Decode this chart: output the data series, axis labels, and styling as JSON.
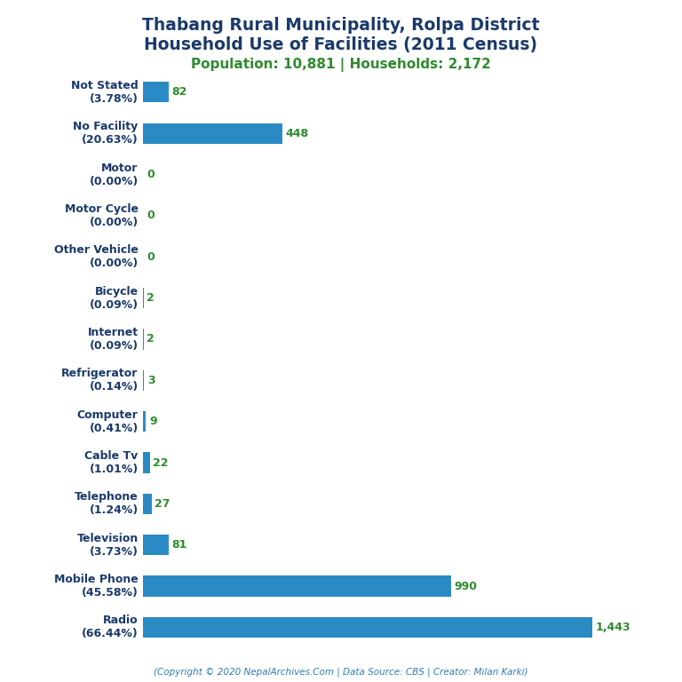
{
  "title_line1": "Thabang Rural Municipality, Rolpa District",
  "title_line2": "Household Use of Facilities (2011 Census)",
  "subtitle": "Population: 10,881 | Households: 2,172",
  "footer": "(Copyright © 2020 NepalArchives.Com | Data Source: CBS | Creator: Milan Karki)",
  "title_color": "#1a3a6b",
  "subtitle_color": "#2e8b2e",
  "footer_color": "#2e7db5",
  "bar_color": "#2a8bc4",
  "value_color": "#2e8b2e",
  "label_color": "#1a3a6b",
  "categories": [
    "Not Stated\n(3.78%)",
    "No Facility\n(20.63%)",
    "Motor\n(0.00%)",
    "Motor Cycle\n(0.00%)",
    "Other Vehicle\n(0.00%)",
    "Bicycle\n(0.09%)",
    "Internet\n(0.09%)",
    "Refrigerator\n(0.14%)",
    "Computer\n(0.41%)",
    "Cable Tv\n(1.01%)",
    "Telephone\n(1.24%)",
    "Television\n(3.73%)",
    "Mobile Phone\n(45.58%)",
    "Radio\n(66.44%)"
  ],
  "values": [
    82,
    448,
    0,
    0,
    0,
    2,
    2,
    3,
    9,
    22,
    27,
    81,
    990,
    1443
  ],
  "value_labels": [
    "82",
    "448",
    "0",
    "0",
    "0",
    "2",
    "2",
    "3",
    "9",
    "22",
    "27",
    "81",
    "990",
    "1,443"
  ],
  "xlim": [
    0,
    1600
  ],
  "figsize": [
    7.68,
    7.68
  ],
  "dpi": 100,
  "title_fontsize": 13.5,
  "subtitle_fontsize": 11,
  "label_fontsize": 9,
  "value_fontsize": 9,
  "footer_fontsize": 7.5,
  "bar_height": 0.5
}
